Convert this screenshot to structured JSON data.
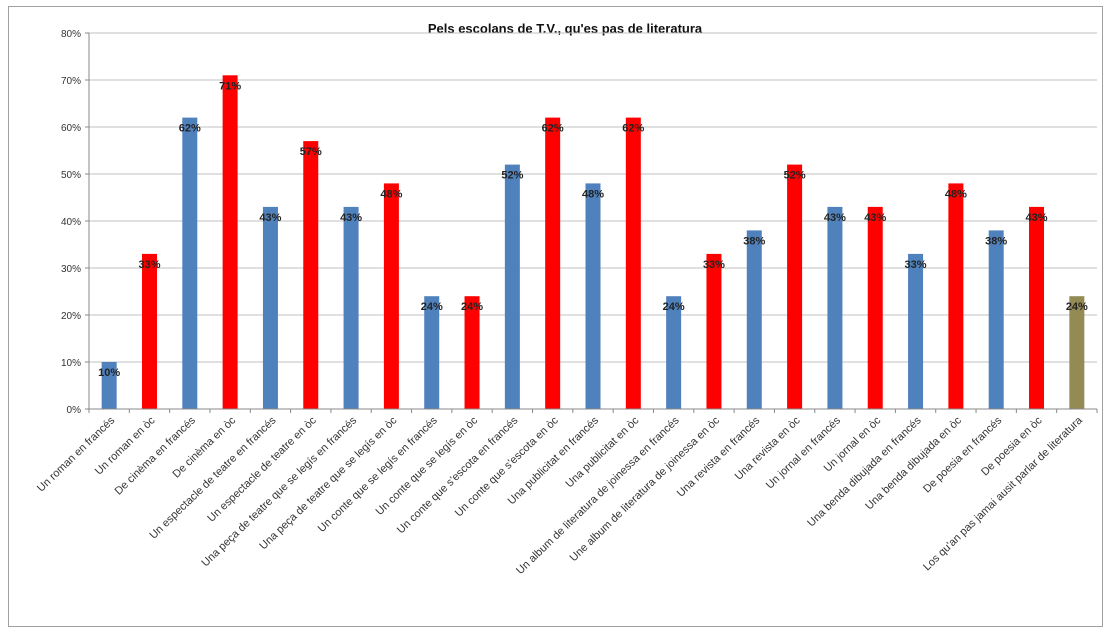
{
  "chart_data": {
    "type": "bar",
    "title": "Pels escolans de T.V., qu'es pas de literatura",
    "xlabel": "",
    "ylabel": "",
    "ylim": [
      0,
      80
    ],
    "yticks": [
      "0%",
      "10%",
      "20%",
      "30%",
      "40%",
      "50%",
      "60%",
      "70%",
      "80%"
    ],
    "grid": true,
    "legend": "none",
    "categories": [
      "Un roman en francés",
      "Un roman en òc",
      "De cinèma en francés",
      "De cinèma en òc",
      "Un espectacle de teatre en francés",
      "Un espectacle de teatre en òc",
      "Una peça de teatre que se legís en francés",
      "Una peça de teatre que se legís en òc",
      "Un conte que se legís en francés",
      "Un conte que se legís en òc",
      "Un conte que s'escota en francés",
      "Un conte que s'escota en òc",
      "Una publicitat en francés",
      "Una publicitat en òc",
      "Un album de literatura de joinessa en francés",
      "Une album de literatura de joinessa en òc",
      "Una revista en francés",
      "Una revista en òc",
      "Un jornal en francés",
      "Un jornal en òc",
      "Una benda dibujada en francés",
      "Una benda dibujada en òc",
      "De poesia en francés",
      "De poesia en òc",
      "Los qu'an pas jamai ausit parlar de literatura"
    ],
    "values": [
      10,
      33,
      62,
      71,
      43,
      57,
      43,
      48,
      24,
      24,
      52,
      62,
      48,
      62,
      24,
      33,
      38,
      52,
      43,
      43,
      33,
      48,
      38,
      43,
      24
    ],
    "data_labels": [
      "10%",
      "33%",
      "62%",
      "71%",
      "43%",
      "57%",
      "43%",
      "48%",
      "24%",
      "24%",
      "52%",
      "62%",
      "48%",
      "62%",
      "24%",
      "33%",
      "38%",
      "52%",
      "43%",
      "43%",
      "33%",
      "48%",
      "38%",
      "43%",
      "24%"
    ],
    "bar_colors": [
      "#4f81bd",
      "#ff0000",
      "#4f81bd",
      "#ff0000",
      "#4f81bd",
      "#ff0000",
      "#4f81bd",
      "#ff0000",
      "#4f81bd",
      "#ff0000",
      "#4f81bd",
      "#ff0000",
      "#4f81bd",
      "#ff0000",
      "#4f81bd",
      "#ff0000",
      "#4f81bd",
      "#ff0000",
      "#4f81bd",
      "#ff0000",
      "#4f81bd",
      "#ff0000",
      "#4f81bd",
      "#ff0000",
      "#948a54"
    ],
    "colors": {
      "francés": "#4f81bd",
      "òc": "#ff0000",
      "other": "#948a54",
      "gridline": "#c0c0c0",
      "axis": "#888888"
    }
  }
}
